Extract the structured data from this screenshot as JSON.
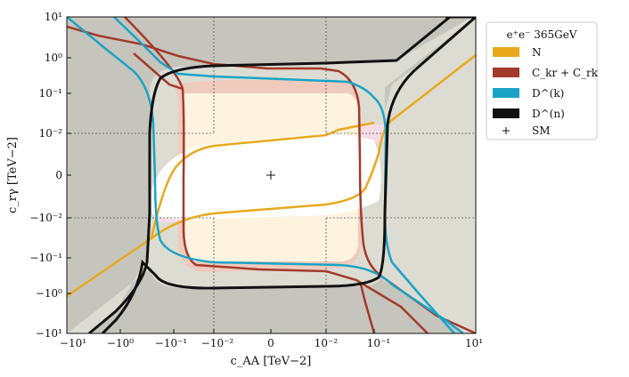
{
  "chart_data": {
    "type": "line",
    "xlabel": "c_AA [TeV−2]",
    "ylabel": "c_rγ [TeV−2]",
    "scale": "symlog",
    "linthresh": 0.01,
    "xlim": [
      -10,
      10
    ],
    "ylim": [
      -10,
      10
    ],
    "grid": "dotted lines at ±0.01",
    "x_ticks": [
      "−10¹",
      "−10⁰",
      "−10⁻¹",
      "−10⁻²",
      "0",
      "10⁻²",
      "10⁻¹",
      "10¹"
    ],
    "y_ticks": [
      "10¹",
      "10⁰",
      "10⁻¹",
      "10⁻²",
      "0",
      "−10⁻²",
      "−10⁻¹",
      "−10⁰",
      "−10¹"
    ],
    "legend": {
      "placement": "outside-right",
      "title": "e⁺e⁻ 365GeV",
      "entries": [
        {
          "label": "N",
          "color": "#e8a91c",
          "kind": "patch"
        },
        {
          "label": "C_kr + C_rk",
          "color": "#a33a2c",
          "kind": "patch"
        },
        {
          "label": "D^(k)",
          "color": "#1ba3c6",
          "kind": "patch"
        },
        {
          "label": "D^(n)",
          "color": "#111111",
          "kind": "patch"
        },
        {
          "label": "SM",
          "color": "#111111",
          "kind": "marker"
        }
      ]
    },
    "sm_point": {
      "x": 0,
      "y": 0
    },
    "colors": {
      "background": "#c6c5bd",
      "Dn_fill": "#dddcd2",
      "Dk_fill": "#e5e4da",
      "C_fill": "#eecbbd",
      "N_fill": "#fdf3df",
      "center": "#ffffff",
      "pink": "#f4dbe6"
    },
    "series": [
      {
        "name": "N",
        "color": "#e8a91c",
        "x": [
          -0.1,
          -0.06,
          -0.03,
          -0.01,
          0.0,
          0.01,
          0.03,
          0.05,
          0.07,
          0.1,
          0.13,
          0.16,
          0.2,
          0.3,
          0.6,
          1.0,
          3.0,
          10.0
        ],
        "y": [
          -0.05,
          -0.02,
          -0.013,
          -0.01,
          -0.008,
          -0.006,
          -0.004,
          -0.002,
          0.0,
          0.004,
          0.008,
          0.012,
          0.02,
          0.03,
          0.06,
          0.1,
          0.3,
          1.5
        ]
      },
      {
        "name": "C_kr + C_rk",
        "color": "#a33a2c",
        "x": [
          -10,
          -1,
          -0.3,
          -0.15,
          -0.1,
          -0.08,
          -0.07,
          -0.06,
          -0.05,
          0.05,
          0.06,
          0.07,
          0.1,
          0.3,
          2
        ],
        "y": [
          7,
          3,
          1.2,
          0.6,
          0.2,
          0.08,
          0.02,
          0,
          -0.02,
          -0.2,
          -0.6,
          -1,
          -3,
          -8,
          -10
        ]
      },
      {
        "name": "D^(k)",
        "color": "#1ba3c6",
        "x": [
          -10,
          -1,
          -0.3,
          -0.2,
          -0.15,
          -0.12,
          -0.1,
          0.1,
          0.12,
          0.15,
          0.2,
          0.3,
          1,
          10
        ],
        "y": [
          10,
          1.5,
          0.4,
          0.15,
          0.05,
          0.01,
          0,
          0,
          -0.01,
          -0.05,
          -0.2,
          -0.6,
          -2,
          -10
        ]
      },
      {
        "name": "D^(n)",
        "color": "#111111",
        "x": [
          -10,
          -0.5,
          -0.2,
          -0.17,
          0,
          0.17,
          0.2,
          0.5,
          10
        ],
        "y": [
          -10,
          -2,
          -0.6,
          0,
          0.6,
          0,
          0.6,
          2,
          10
        ]
      }
    ]
  }
}
